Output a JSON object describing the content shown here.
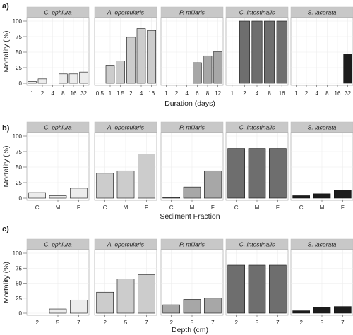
{
  "figure": {
    "species": [
      "C. ophiura",
      "A. opercularis",
      "P. miliaris",
      "C. intestinalis",
      "S. lacerata"
    ],
    "colors": {
      "C. ophiura": "#ececec",
      "A. opercularis": "#cccccc",
      "P. miliaris": "#a7a7a7",
      "C. intestinalis": "#6e6e6e",
      "S. lacerata": "#1c1c1c"
    },
    "strip_color": "#c8c8c8",
    "panel_bg": "#ffffff",
    "grid_color": "#ececec",
    "ylabel": "Mortality (%)",
    "y_ticks": [
      "0",
      "25",
      "50",
      "75",
      "100"
    ]
  },
  "chart_data": [
    {
      "type": "bar",
      "panel_label": "a)",
      "xlabel": "Duration (days)",
      "ylabel": "Mortality (%)",
      "ylim": [
        0,
        100
      ],
      "grid": true,
      "facets": [
        {
          "name": "C. ophiura",
          "categories": [
            "1",
            "2",
            "4",
            "8",
            "16",
            "32"
          ],
          "values": [
            3,
            7,
            0,
            15,
            15,
            18
          ]
        },
        {
          "name": "A. opercularis",
          "categories": [
            "0.5",
            "1",
            "1.5",
            "2",
            "4",
            "16"
          ],
          "values": [
            0,
            29,
            36,
            74,
            88,
            85
          ]
        },
        {
          "name": "P. miliaris",
          "categories": [
            "1",
            "2",
            "4",
            "6",
            "8",
            "12"
          ],
          "values": [
            0,
            0,
            0,
            33,
            44,
            51
          ]
        },
        {
          "name": "C. intestinalis",
          "categories": [
            "1",
            "2",
            "4",
            "8",
            "16"
          ],
          "values": [
            0,
            100,
            100,
            100,
            100
          ]
        },
        {
          "name": "S. lacerata",
          "categories": [
            "1",
            "2",
            "4",
            "8",
            "16",
            "32"
          ],
          "values": [
            0,
            0,
            0,
            0,
            0,
            47
          ]
        }
      ]
    },
    {
      "type": "bar",
      "panel_label": "b)",
      "xlabel": "Sediment Fraction",
      "ylabel": "Mortality (%)",
      "ylim": [
        0,
        100
      ],
      "grid": true,
      "facets": [
        {
          "name": "C. ophiura",
          "categories": [
            "C",
            "M",
            "F"
          ],
          "values": [
            9,
            4,
            16
          ]
        },
        {
          "name": "A. opercularis",
          "categories": [
            "C",
            "M",
            "F"
          ],
          "values": [
            40,
            44,
            71
          ]
        },
        {
          "name": "P. miliaris",
          "categories": [
            "C",
            "M",
            "F"
          ],
          "values": [
            1,
            18,
            44
          ]
        },
        {
          "name": "C. intestinalis",
          "categories": [
            "C",
            "M",
            "F"
          ],
          "values": [
            80,
            80,
            80
          ]
        },
        {
          "name": "S. lacerata",
          "categories": [
            "C",
            "M",
            "F"
          ],
          "values": [
            4,
            7,
            13
          ]
        }
      ]
    },
    {
      "type": "bar",
      "panel_label": "c)",
      "xlabel": "Depth (cm)",
      "ylabel": "Mortality (%)",
      "ylim": [
        0,
        100
      ],
      "grid": true,
      "facets": [
        {
          "name": "C. ophiura",
          "categories": [
            "2",
            "5",
            "7"
          ],
          "values": [
            0,
            7,
            22
          ]
        },
        {
          "name": "A. opercularis",
          "categories": [
            "2",
            "5",
            "7"
          ],
          "values": [
            35,
            57,
            64
          ]
        },
        {
          "name": "P. miliaris",
          "categories": [
            "2",
            "5",
            "7"
          ],
          "values": [
            14,
            23,
            25
          ]
        },
        {
          "name": "C. intestinalis",
          "categories": [
            "2",
            "5",
            "7"
          ],
          "values": [
            80,
            80,
            80
          ]
        },
        {
          "name": "S. lacerata",
          "categories": [
            "2",
            "5",
            "7"
          ],
          "values": [
            4,
            9,
            11
          ]
        }
      ]
    }
  ]
}
